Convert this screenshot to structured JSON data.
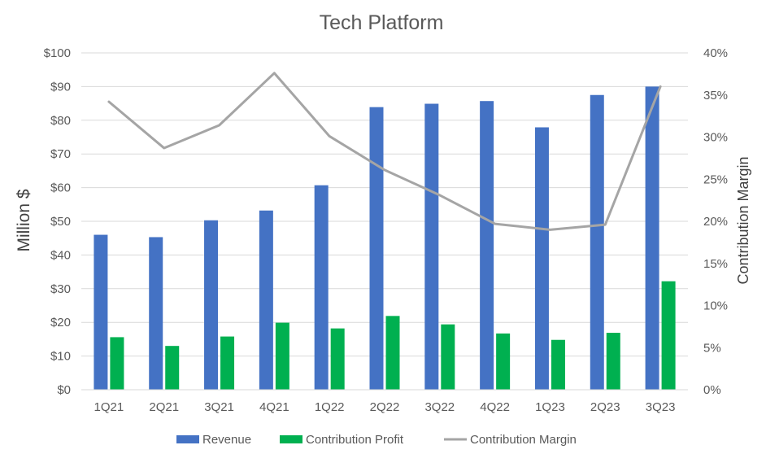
{
  "chart_data": {
    "type": "bar",
    "title": "Tech Platform",
    "ylabel": "Million $",
    "y2label": "Contribution Margin",
    "categories": [
      "1Q21",
      "2Q21",
      "3Q21",
      "4Q21",
      "1Q22",
      "2Q22",
      "3Q22",
      "4Q22",
      "1Q23",
      "2Q23",
      "3Q23"
    ],
    "ylim": [
      0,
      100
    ],
    "y2lim": [
      0,
      40
    ],
    "y_ticks": [
      "$0",
      "$10",
      "$20",
      "$30",
      "$40",
      "$50",
      "$60",
      "$70",
      "$80",
      "$90",
      "$100"
    ],
    "y2_ticks": [
      "0%",
      "5%",
      "10%",
      "15%",
      "20%",
      "25%",
      "30%",
      "35%",
      "40%"
    ],
    "series": [
      {
        "name": "Revenue",
        "type": "bar",
        "axis": "left",
        "color": "#4472c4",
        "values": [
          46.0,
          45.3,
          50.3,
          53.2,
          60.7,
          83.9,
          84.9,
          85.7,
          77.9,
          87.5,
          90.0
        ]
      },
      {
        "name": "Contribution Profit",
        "type": "bar",
        "axis": "left",
        "color": "#00b050",
        "values": [
          15.6,
          13.0,
          15.8,
          19.9,
          18.2,
          21.9,
          19.4,
          16.7,
          14.8,
          16.9,
          32.2
        ]
      },
      {
        "name": "Contribution Margin",
        "type": "line",
        "axis": "right",
        "color": "#a5a5a5",
        "values": [
          34.2,
          28.7,
          31.4,
          37.6,
          30.1,
          26.1,
          23.1,
          19.7,
          19.0,
          19.6,
          36.0
        ]
      }
    ],
    "grid": true,
    "legend": "bottom"
  }
}
